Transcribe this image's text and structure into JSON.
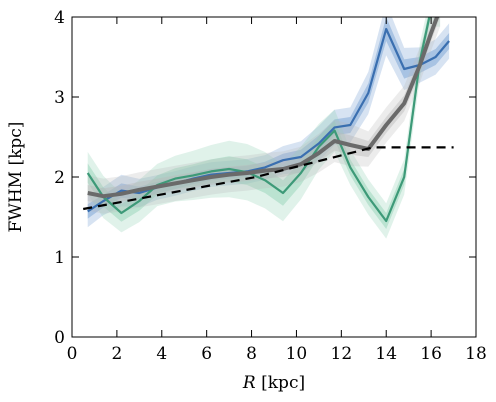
{
  "chart_data": {
    "type": "line",
    "xlabel_italic": "R",
    "xlabel_rest": " [kpc]",
    "ylabel": "FWHM [kpc]",
    "xlim": [
      0,
      18
    ],
    "ylim": [
      0,
      4
    ],
    "xticks": [
      0,
      2,
      4,
      6,
      8,
      10,
      12,
      14,
      16,
      18
    ],
    "yticks": [
      0,
      1,
      2,
      3,
      4
    ],
    "grid": false,
    "legend": "none",
    "series": [
      {
        "color": "#3a6fb0",
        "band_color": "#6f9bd0",
        "x": [
          0.7,
          1.4,
          2.2,
          3.0,
          3.8,
          4.6,
          5.4,
          6.2,
          7.0,
          7.8,
          8.6,
          9.4,
          10.2,
          11.0,
          11.7,
          12.4,
          13.2,
          14.0,
          14.8,
          15.5,
          16.2,
          16.8
        ],
        "y": [
          1.57,
          1.7,
          1.83,
          1.8,
          1.87,
          1.92,
          1.98,
          2.03,
          2.05,
          2.07,
          2.12,
          2.21,
          2.25,
          2.42,
          2.62,
          2.65,
          3.05,
          3.85,
          3.35,
          3.4,
          3.5,
          3.7
        ],
        "band": [
          0.09,
          0.08,
          0.09,
          0.08,
          0.07,
          0.07,
          0.07,
          0.07,
          0.07,
          0.07,
          0.07,
          0.08,
          0.09,
          0.1,
          0.1,
          0.1,
          0.12,
          0.15,
          0.12,
          0.1,
          0.1,
          0.1
        ]
      },
      {
        "color": "#3d9a78",
        "band_color": "#8fd0b4",
        "x": [
          0.7,
          1.4,
          2.2,
          3.0,
          3.8,
          4.6,
          5.4,
          6.2,
          7.0,
          7.8,
          8.6,
          9.4,
          10.2,
          11.0,
          11.7,
          12.4,
          13.2,
          14.0,
          14.8,
          15.5,
          16.0,
          16.4
        ],
        "y": [
          2.05,
          1.75,
          1.55,
          1.7,
          1.9,
          1.98,
          2.02,
          2.07,
          2.1,
          2.06,
          1.96,
          1.8,
          2.05,
          2.38,
          2.58,
          2.12,
          1.75,
          1.45,
          2.0,
          3.45,
          4.1,
          4.1
        ],
        "band": [
          0.12,
          0.12,
          0.11,
          0.12,
          0.12,
          0.13,
          0.14,
          0.15,
          0.16,
          0.16,
          0.16,
          0.16,
          0.15,
          0.13,
          0.12,
          0.1,
          0.1,
          0.1,
          0.1,
          0.1,
          0.1,
          0.1
        ]
      },
      {
        "color": "#6a6a6a",
        "band_color": "#bbbbbb",
        "x": [
          0.7,
          1.4,
          2.2,
          3.0,
          3.8,
          4.6,
          5.4,
          6.2,
          7.0,
          7.8,
          8.6,
          9.4,
          10.2,
          11.0,
          11.7,
          12.4,
          13.2,
          14.0,
          14.8,
          15.5,
          16.0,
          16.4
        ],
        "y": [
          1.8,
          1.76,
          1.79,
          1.84,
          1.88,
          1.92,
          1.96,
          2.0,
          2.03,
          2.05,
          2.08,
          2.1,
          2.16,
          2.3,
          2.45,
          2.4,
          2.35,
          2.65,
          2.92,
          3.4,
          3.8,
          4.1
        ],
        "band": [
          0.1,
          0.1,
          0.1,
          0.1,
          0.1,
          0.1,
          0.1,
          0.1,
          0.1,
          0.1,
          0.1,
          0.1,
          0.1,
          0.11,
          0.12,
          0.12,
          0.1,
          0.1,
          0.1,
          0.1,
          0.1,
          0.1
        ]
      }
    ],
    "reference": {
      "style": "dashed",
      "color": "#000000",
      "x": [
        0.5,
        8.2,
        13.4,
        17.0
      ],
      "y": [
        1.6,
        2.0,
        2.37,
        2.37
      ]
    }
  }
}
